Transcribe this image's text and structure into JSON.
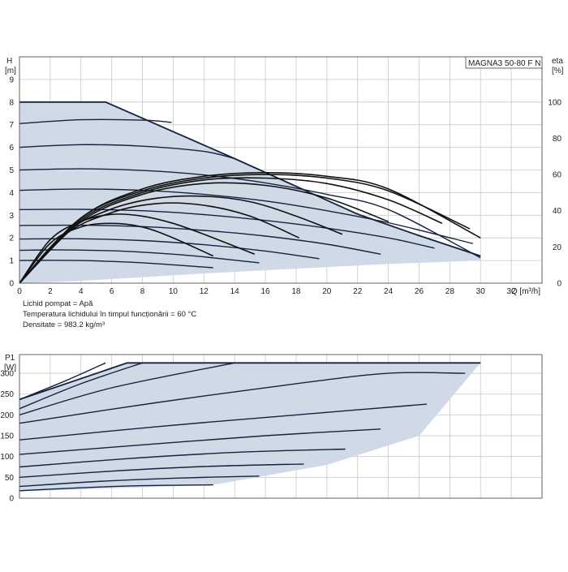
{
  "chart_data": [
    {
      "type": "line",
      "model_label": "MAGNA3 50-80 F N",
      "ylabel": "H\n[m]",
      "y2label": "eta\n[%]",
      "xlabel": "Q [m³/h]",
      "xlim": [
        0,
        34
      ],
      "ylim": [
        0,
        10
      ],
      "y2lim": [
        0,
        125
      ],
      "x_ticks": [
        "0",
        "2",
        "4",
        "6",
        "8",
        "10",
        "12",
        "14",
        "16",
        "18",
        "20",
        "22",
        "24",
        "26",
        "28",
        "30",
        "32"
      ],
      "y_ticks": [
        "0",
        "1",
        "2",
        "3",
        "4",
        "5",
        "6",
        "7",
        "8",
        "9"
      ],
      "y2_ticks": [
        "0",
        "20",
        "40",
        "60",
        "80",
        "100"
      ],
      "notes": [
        "Lichid pompat = Apă",
        "Temperatura lichidului în timpul funcționării = 60 °C",
        "Densitate = 983.2 kg/m³"
      ],
      "envelope": [
        [
          0,
          8
        ],
        [
          5.6,
          8
        ],
        [
          14,
          5.5
        ],
        [
          22,
          3.05
        ],
        [
          26,
          2.1
        ],
        [
          30,
          1.2
        ]
      ],
      "head_curves": [
        {
          "x": [
            0,
            2,
            4,
            6,
            8,
            10,
            12.6
          ],
          "y": [
            1,
            1.01,
            1.0,
            0.96,
            0.9,
            0.81,
            0.68
          ]
        },
        {
          "x": [
            0,
            2,
            4,
            6,
            8,
            10,
            12,
            15.6
          ],
          "y": [
            1.45,
            1.47,
            1.46,
            1.43,
            1.37,
            1.28,
            1.16,
            0.9
          ]
        },
        {
          "x": [
            0,
            4,
            8,
            12,
            16,
            19.5
          ],
          "y": [
            1.95,
            1.96,
            1.88,
            1.7,
            1.42,
            1.08
          ]
        },
        {
          "x": [
            0,
            4,
            8,
            12,
            16,
            20,
            23.5
          ],
          "y": [
            2.55,
            2.56,
            2.5,
            2.33,
            2.08,
            1.72,
            1.28
          ]
        },
        {
          "x": [
            0,
            4,
            8,
            12,
            16,
            20,
            24,
            27
          ],
          "y": [
            3.25,
            3.26,
            3.2,
            3.03,
            2.77,
            2.43,
            2.0,
            1.55
          ]
        },
        {
          "x": [
            0,
            4,
            8,
            12,
            16,
            20,
            24,
            29.5
          ],
          "y": [
            4.1,
            4.16,
            4.1,
            3.92,
            3.63,
            3.2,
            2.67,
            1.75
          ]
        },
        {
          "x": [
            0,
            4,
            8,
            12,
            16,
            20,
            24,
            30
          ],
          "y": [
            5.0,
            5.05,
            4.98,
            4.78,
            4.43,
            3.92,
            3.25,
            1.12
          ]
        },
        {
          "x": [
            0,
            4,
            8,
            12,
            14
          ],
          "y": [
            6.0,
            6.12,
            6.05,
            5.82,
            5.5
          ]
        },
        {
          "x": [
            0,
            4,
            8,
            9.9
          ],
          "y": [
            7.05,
            7.22,
            7.2,
            7.1
          ]
        }
      ],
      "eta_curves": [
        {
          "x": [
            0,
            2,
            4,
            6,
            8,
            10,
            12.6
          ],
          "y": [
            0,
            22,
            31,
            33,
            31,
            25,
            15
          ]
        },
        {
          "x": [
            0,
            2,
            4,
            6,
            8,
            10,
            12,
            15.3
          ],
          "y": [
            0,
            24,
            34,
            38,
            37,
            33,
            27,
            16
          ]
        },
        {
          "x": [
            0,
            3,
            6,
            9,
            12,
            15,
            18.2
          ],
          "y": [
            0,
            27,
            39,
            44,
            43,
            37,
            25
          ]
        },
        {
          "x": [
            0,
            3,
            6,
            9,
            12,
            15,
            18,
            21
          ],
          "y": [
            0,
            28,
            41,
            47,
            48,
            45,
            37,
            27
          ]
        },
        {
          "x": [
            0,
            4,
            8,
            12,
            16,
            20,
            24
          ],
          "y": [
            0,
            34,
            49,
            55,
            54,
            47,
            34
          ]
        },
        {
          "x": [
            0,
            4,
            8,
            12,
            16,
            20,
            24,
            27.5
          ],
          "y": [
            0,
            35,
            50,
            57,
            58,
            55,
            46,
            33
          ]
        },
        {
          "x": [
            0,
            4,
            8,
            12,
            16,
            20,
            24,
            29.3
          ],
          "y": [
            0,
            36,
            51,
            58,
            60,
            58,
            51,
            30
          ]
        },
        {
          "x": [
            0,
            4,
            8,
            12,
            16,
            20,
            24,
            30
          ],
          "y": [
            0,
            36,
            52,
            59,
            61,
            59,
            52,
            25
          ]
        }
      ]
    },
    {
      "type": "line",
      "ylabel": "P1\n[W]",
      "xlim": [
        0,
        34
      ],
      "ylim": [
        0,
        345
      ],
      "y_ticks": [
        "0",
        "50",
        "100",
        "150",
        "200",
        "250",
        "300"
      ],
      "envelope": [
        [
          0,
          237
        ],
        [
          7,
          325
        ],
        [
          30,
          325
        ]
      ],
      "power_curves": [
        {
          "x": [
            0,
            4,
            8,
            12.6
          ],
          "y": [
            18,
            25,
            30,
            32
          ]
        },
        {
          "x": [
            0,
            5,
            10,
            15.6
          ],
          "y": [
            28,
            40,
            48,
            53
          ]
        },
        {
          "x": [
            0,
            6,
            12,
            18.5
          ],
          "y": [
            50,
            65,
            76,
            82
          ]
        },
        {
          "x": [
            0,
            7,
            14,
            21.2
          ],
          "y": [
            75,
            95,
            110,
            118
          ]
        },
        {
          "x": [
            0,
            8,
            16,
            23.5
          ],
          "y": [
            105,
            128,
            150,
            166
          ]
        },
        {
          "x": [
            0,
            9,
            18,
            26.5
          ],
          "y": [
            140,
            172,
            200,
            226
          ]
        },
        {
          "x": [
            0,
            9,
            18,
            24,
            29
          ],
          "y": [
            180,
            230,
            275,
            300,
            300
          ]
        },
        {
          "x": [
            0,
            6,
            14
          ],
          "y": [
            200,
            265,
            325
          ]
        },
        {
          "x": [
            0,
            4,
            8
          ],
          "y": [
            215,
            275,
            325
          ]
        },
        {
          "x": [
            0,
            3,
            5.6
          ],
          "y": [
            237,
            282,
            325
          ]
        }
      ],
      "region_right": [
        [
          12.6,
          32
        ],
        [
          20,
          80
        ],
        [
          26,
          150
        ],
        [
          30,
          325
        ]
      ]
    }
  ]
}
